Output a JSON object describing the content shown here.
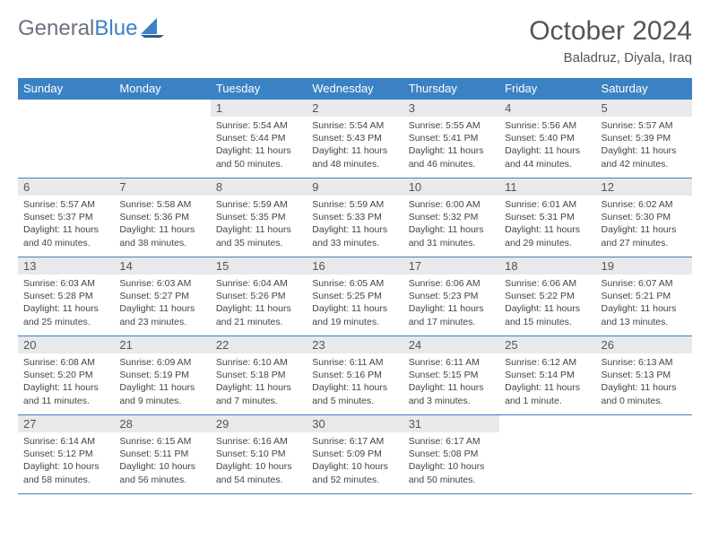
{
  "logo": {
    "general": "General",
    "blue": "Blue"
  },
  "title": "October 2024",
  "location": "Baladruz, Diyala, Iraq",
  "colors": {
    "header_bg": "#3b82c4",
    "header_text": "#ffffff",
    "daynum_bg": "#e8e9eb",
    "border": "#3b82c4",
    "body_text": "#444444",
    "logo_gray": "#6b7280",
    "logo_blue": "#3b82c4"
  },
  "day_names": [
    "Sunday",
    "Monday",
    "Tuesday",
    "Wednesday",
    "Thursday",
    "Friday",
    "Saturday"
  ],
  "weeks": [
    [
      null,
      null,
      {
        "n": "1",
        "sr": "Sunrise: 5:54 AM",
        "ss": "Sunset: 5:44 PM",
        "dl": "Daylight: 11 hours and 50 minutes."
      },
      {
        "n": "2",
        "sr": "Sunrise: 5:54 AM",
        "ss": "Sunset: 5:43 PM",
        "dl": "Daylight: 11 hours and 48 minutes."
      },
      {
        "n": "3",
        "sr": "Sunrise: 5:55 AM",
        "ss": "Sunset: 5:41 PM",
        "dl": "Daylight: 11 hours and 46 minutes."
      },
      {
        "n": "4",
        "sr": "Sunrise: 5:56 AM",
        "ss": "Sunset: 5:40 PM",
        "dl": "Daylight: 11 hours and 44 minutes."
      },
      {
        "n": "5",
        "sr": "Sunrise: 5:57 AM",
        "ss": "Sunset: 5:39 PM",
        "dl": "Daylight: 11 hours and 42 minutes."
      }
    ],
    [
      {
        "n": "6",
        "sr": "Sunrise: 5:57 AM",
        "ss": "Sunset: 5:37 PM",
        "dl": "Daylight: 11 hours and 40 minutes."
      },
      {
        "n": "7",
        "sr": "Sunrise: 5:58 AM",
        "ss": "Sunset: 5:36 PM",
        "dl": "Daylight: 11 hours and 38 minutes."
      },
      {
        "n": "8",
        "sr": "Sunrise: 5:59 AM",
        "ss": "Sunset: 5:35 PM",
        "dl": "Daylight: 11 hours and 35 minutes."
      },
      {
        "n": "9",
        "sr": "Sunrise: 5:59 AM",
        "ss": "Sunset: 5:33 PM",
        "dl": "Daylight: 11 hours and 33 minutes."
      },
      {
        "n": "10",
        "sr": "Sunrise: 6:00 AM",
        "ss": "Sunset: 5:32 PM",
        "dl": "Daylight: 11 hours and 31 minutes."
      },
      {
        "n": "11",
        "sr": "Sunrise: 6:01 AM",
        "ss": "Sunset: 5:31 PM",
        "dl": "Daylight: 11 hours and 29 minutes."
      },
      {
        "n": "12",
        "sr": "Sunrise: 6:02 AM",
        "ss": "Sunset: 5:30 PM",
        "dl": "Daylight: 11 hours and 27 minutes."
      }
    ],
    [
      {
        "n": "13",
        "sr": "Sunrise: 6:03 AM",
        "ss": "Sunset: 5:28 PM",
        "dl": "Daylight: 11 hours and 25 minutes."
      },
      {
        "n": "14",
        "sr": "Sunrise: 6:03 AM",
        "ss": "Sunset: 5:27 PM",
        "dl": "Daylight: 11 hours and 23 minutes."
      },
      {
        "n": "15",
        "sr": "Sunrise: 6:04 AM",
        "ss": "Sunset: 5:26 PM",
        "dl": "Daylight: 11 hours and 21 minutes."
      },
      {
        "n": "16",
        "sr": "Sunrise: 6:05 AM",
        "ss": "Sunset: 5:25 PM",
        "dl": "Daylight: 11 hours and 19 minutes."
      },
      {
        "n": "17",
        "sr": "Sunrise: 6:06 AM",
        "ss": "Sunset: 5:23 PM",
        "dl": "Daylight: 11 hours and 17 minutes."
      },
      {
        "n": "18",
        "sr": "Sunrise: 6:06 AM",
        "ss": "Sunset: 5:22 PM",
        "dl": "Daylight: 11 hours and 15 minutes."
      },
      {
        "n": "19",
        "sr": "Sunrise: 6:07 AM",
        "ss": "Sunset: 5:21 PM",
        "dl": "Daylight: 11 hours and 13 minutes."
      }
    ],
    [
      {
        "n": "20",
        "sr": "Sunrise: 6:08 AM",
        "ss": "Sunset: 5:20 PM",
        "dl": "Daylight: 11 hours and 11 minutes."
      },
      {
        "n": "21",
        "sr": "Sunrise: 6:09 AM",
        "ss": "Sunset: 5:19 PM",
        "dl": "Daylight: 11 hours and 9 minutes."
      },
      {
        "n": "22",
        "sr": "Sunrise: 6:10 AM",
        "ss": "Sunset: 5:18 PM",
        "dl": "Daylight: 11 hours and 7 minutes."
      },
      {
        "n": "23",
        "sr": "Sunrise: 6:11 AM",
        "ss": "Sunset: 5:16 PM",
        "dl": "Daylight: 11 hours and 5 minutes."
      },
      {
        "n": "24",
        "sr": "Sunrise: 6:11 AM",
        "ss": "Sunset: 5:15 PM",
        "dl": "Daylight: 11 hours and 3 minutes."
      },
      {
        "n": "25",
        "sr": "Sunrise: 6:12 AM",
        "ss": "Sunset: 5:14 PM",
        "dl": "Daylight: 11 hours and 1 minute."
      },
      {
        "n": "26",
        "sr": "Sunrise: 6:13 AM",
        "ss": "Sunset: 5:13 PM",
        "dl": "Daylight: 11 hours and 0 minutes."
      }
    ],
    [
      {
        "n": "27",
        "sr": "Sunrise: 6:14 AM",
        "ss": "Sunset: 5:12 PM",
        "dl": "Daylight: 10 hours and 58 minutes."
      },
      {
        "n": "28",
        "sr": "Sunrise: 6:15 AM",
        "ss": "Sunset: 5:11 PM",
        "dl": "Daylight: 10 hours and 56 minutes."
      },
      {
        "n": "29",
        "sr": "Sunrise: 6:16 AM",
        "ss": "Sunset: 5:10 PM",
        "dl": "Daylight: 10 hours and 54 minutes."
      },
      {
        "n": "30",
        "sr": "Sunrise: 6:17 AM",
        "ss": "Sunset: 5:09 PM",
        "dl": "Daylight: 10 hours and 52 minutes."
      },
      {
        "n": "31",
        "sr": "Sunrise: 6:17 AM",
        "ss": "Sunset: 5:08 PM",
        "dl": "Daylight: 10 hours and 50 minutes."
      },
      null,
      null
    ]
  ]
}
